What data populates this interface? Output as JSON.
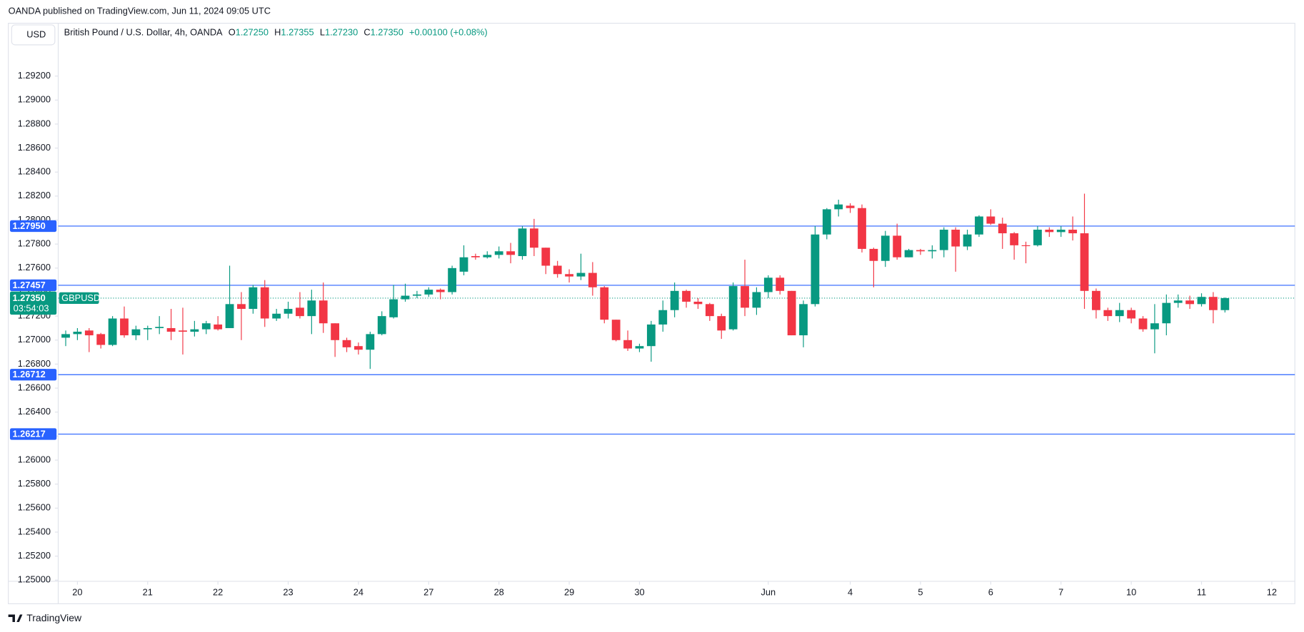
{
  "chart_data": {
    "type": "candlestick",
    "header": "OANDA published on TradingView.com, Jun 11, 2024 09:05 UTC",
    "currency": "USD",
    "legend": {
      "symbol": "British Pound / U.S. Dollar, 4h, OANDA",
      "o_label": "O",
      "o_value": "1.27250",
      "h_label": "H",
      "h_value": "1.27355",
      "l_label": "L",
      "l_value": "1.27230",
      "c_label": "C",
      "c_value": "1.27350",
      "change": "+0.00100 (+0.08%)"
    },
    "footer": "TradingView",
    "up_color": "#089981",
    "down_color": "#f23645",
    "open": [
      1.2702,
      1.2705,
      1.2708,
      1.2705,
      1.2696,
      1.2718,
      1.2704,
      1.2709,
      1.271,
      1.271,
      1.2708,
      1.2707,
      1.2709,
      1.2713,
      1.271,
      1.273,
      1.2726,
      1.2744,
      1.2718,
      1.2722,
      1.2727,
      1.272,
      1.2733,
      1.2714,
      1.27,
      1.2695,
      1.2692,
      1.2705,
      1.2719,
      1.2734,
      1.2737,
      1.2738,
      1.2742,
      1.274,
      1.2757,
      1.277,
      1.2769,
      1.2771,
      1.2774,
      1.277,
      1.2793,
      1.2777,
      1.2762,
      1.2755,
      1.2753,
      1.2756,
      1.2744,
      1.2717,
      1.27,
      1.2693,
      1.2695,
      1.2713,
      1.2725,
      1.2741,
      1.2732,
      1.273,
      1.272,
      1.2709,
      1.2745,
      1.2727,
      1.274,
      1.2752,
      1.2741,
      1.2704,
      1.273,
      1.2788,
      1.2809,
      1.2812,
      1.281,
      1.2776,
      1.2766,
      1.2787,
      1.2769,
      1.2775,
      1.2774,
      1.2775,
      1.2792,
      1.2778,
      1.2788,
      1.2803,
      1.2797,
      1.2789,
      1.2779,
      1.2779,
      1.2792,
      1.279,
      1.2792,
      1.2789,
      1.2741,
      1.2725,
      1.272,
      1.2725,
      1.2718,
      1.2709,
      1.2714,
      1.2731,
      1.2733,
      1.273,
      1.2736,
      1.2725
    ],
    "high": [
      1.2708,
      1.271,
      1.271,
      1.2706,
      1.272,
      1.2728,
      1.2712,
      1.2712,
      1.272,
      1.2726,
      1.2727,
      1.2716,
      1.2716,
      1.272,
      1.2762,
      1.274,
      1.2746,
      1.275,
      1.2726,
      1.2732,
      1.274,
      1.2742,
      1.2748,
      1.2714,
      1.2702,
      1.2698,
      1.2707,
      1.2724,
      1.2746,
      1.2747,
      1.2741,
      1.2744,
      1.2743,
      1.2762,
      1.2779,
      1.2772,
      1.2774,
      1.2778,
      1.2781,
      1.2795,
      1.2801,
      1.2777,
      1.2766,
      1.2759,
      1.2772,
      1.2765,
      1.2745,
      1.2717,
      1.2708,
      1.2697,
      1.2716,
      1.2733,
      1.2748,
      1.2742,
      1.2735,
      1.2731,
      1.2722,
      1.2748,
      1.2767,
      1.2744,
      1.2754,
      1.2754,
      1.2741,
      1.2733,
      1.2795,
      1.281,
      1.2817,
      1.2814,
      1.2813,
      1.2777,
      1.2791,
      1.2797,
      1.2776,
      1.2776,
      1.2779,
      1.2794,
      1.2794,
      1.2792,
      1.2804,
      1.2809,
      1.2802,
      1.279,
      1.2782,
      1.2795,
      1.2794,
      1.2795,
      1.2803,
      1.2822,
      1.2743,
      1.2727,
      1.2731,
      1.2727,
      1.272,
      1.273,
      1.2738,
      1.2738,
      1.2737,
      1.2739,
      1.274,
      1.27355
    ],
    "low": [
      1.2695,
      1.27,
      1.269,
      1.2693,
      1.2695,
      1.2702,
      1.27,
      1.27,
      1.2705,
      1.27,
      1.2688,
      1.2703,
      1.2705,
      1.2708,
      1.271,
      1.27,
      1.2722,
      1.2711,
      1.2716,
      1.2718,
      1.2718,
      1.2705,
      1.2706,
      1.2686,
      1.269,
      1.2688,
      1.2676,
      1.2704,
      1.2718,
      1.2732,
      1.2735,
      1.2736,
      1.2734,
      1.2738,
      1.2754,
      1.2767,
      1.2768,
      1.2768,
      1.2764,
      1.2767,
      1.277,
      1.2755,
      1.2752,
      1.2748,
      1.275,
      1.2737,
      1.2714,
      1.2699,
      1.2691,
      1.269,
      1.2682,
      1.2707,
      1.2719,
      1.2727,
      1.2726,
      1.2716,
      1.2701,
      1.2708,
      1.272,
      1.2721,
      1.2735,
      1.2738,
      1.2704,
      1.2694,
      1.2728,
      1.2784,
      1.2803,
      1.2806,
      1.2773,
      1.2744,
      1.2761,
      1.2767,
      1.2769,
      1.2771,
      1.2768,
      1.2769,
      1.2757,
      1.2775,
      1.2786,
      1.2796,
      1.2776,
      1.2767,
      1.2764,
      1.2778,
      1.2786,
      1.2786,
      1.2783,
      1.2726,
      1.2718,
      1.2716,
      1.2715,
      1.2714,
      1.2707,
      1.2689,
      1.2704,
      1.2727,
      1.2726,
      1.2728,
      1.2714,
      1.2723
    ],
    "close": [
      1.2705,
      1.2707,
      1.2704,
      1.2696,
      1.2718,
      1.2704,
      1.2709,
      1.271,
      1.2711,
      1.2707,
      1.2707,
      1.2709,
      1.2714,
      1.2709,
      1.273,
      1.2726,
      1.2744,
      1.2718,
      1.2722,
      1.2726,
      1.272,
      1.2733,
      1.2714,
      1.27,
      1.2694,
      1.2692,
      1.2705,
      1.272,
      1.2734,
      1.2737,
      1.2738,
      1.2742,
      1.274,
      1.276,
      1.2769,
      1.2769,
      1.2771,
      1.2774,
      1.2771,
      1.2793,
      1.2777,
      1.2762,
      1.2755,
      1.2753,
      1.2756,
      1.2744,
      1.2717,
      1.27,
      1.2693,
      1.2695,
      1.2713,
      1.2725,
      1.2741,
      1.2732,
      1.273,
      1.272,
      1.2708,
      1.2745,
      1.2727,
      1.274,
      1.2752,
      1.2741,
      1.2704,
      1.273,
      1.2788,
      1.2809,
      1.2813,
      1.281,
      1.2776,
      1.2766,
      1.2787,
      1.2769,
      1.2775,
      1.2774,
      1.2775,
      1.2792,
      1.2778,
      1.2788,
      1.2803,
      1.2797,
      1.2789,
      1.2779,
      1.2779,
      1.2792,
      1.279,
      1.2792,
      1.2789,
      1.2741,
      1.2725,
      1.272,
      1.2725,
      1.2718,
      1.2709,
      1.2714,
      1.2731,
      1.2733,
      1.273,
      1.2736,
      1.2725,
      1.2735
    ],
    "ylim": [
      1.2499,
      1.2964
    ],
    "yticks": [
      {
        "value": 1.25,
        "label": "1.25000"
      },
      {
        "value": 1.252,
        "label": "1.25200"
      },
      {
        "value": 1.254,
        "label": "1.25400"
      },
      {
        "value": 1.256,
        "label": "1.25600"
      },
      {
        "value": 1.258,
        "label": "1.25800"
      },
      {
        "value": 1.26,
        "label": "1.26000"
      },
      {
        "value": 1.262,
        "label": "1.26200"
      },
      {
        "value": 1.264,
        "label": "1.26400"
      },
      {
        "value": 1.266,
        "label": "1.26600"
      },
      {
        "value": 1.268,
        "label": "1.26800"
      },
      {
        "value": 1.27,
        "label": "1.27000"
      },
      {
        "value": 1.272,
        "label": "1.27200"
      },
      {
        "value": 1.274,
        "label": "1.27400"
      },
      {
        "value": 1.276,
        "label": "1.27600"
      },
      {
        "value": 1.278,
        "label": "1.27800"
      },
      {
        "value": 1.28,
        "label": "1.28000"
      },
      {
        "value": 1.282,
        "label": "1.28200"
      },
      {
        "value": 1.284,
        "label": "1.28400"
      },
      {
        "value": 1.286,
        "label": "1.28600"
      },
      {
        "value": 1.288,
        "label": "1.28800"
      },
      {
        "value": 1.29,
        "label": "1.29000"
      },
      {
        "value": 1.292,
        "label": "1.29200"
      }
    ],
    "xlim": [
      -0.64,
      104.97
    ],
    "xticks": [
      {
        "value": 1,
        "label": "20"
      },
      {
        "value": 7,
        "label": "21"
      },
      {
        "value": 13,
        "label": "22"
      },
      {
        "value": 19,
        "label": "23"
      },
      {
        "value": 25,
        "label": "24"
      },
      {
        "value": 31,
        "label": "27"
      },
      {
        "value": 37,
        "label": "28"
      },
      {
        "value": 43,
        "label": "29"
      },
      {
        "value": 49,
        "label": "30"
      },
      {
        "value": 60,
        "label": "Jun"
      },
      {
        "value": 67,
        "label": "4"
      },
      {
        "value": 73,
        "label": "5"
      },
      {
        "value": 79,
        "label": "6"
      },
      {
        "value": 85,
        "label": "7"
      },
      {
        "value": 91,
        "label": "10"
      },
      {
        "value": 97,
        "label": "11"
      },
      {
        "value": 103,
        "label": "12"
      }
    ],
    "grid": false,
    "hline_color": "#2962ff",
    "hlines": [
      {
        "value": 1.2795,
        "label": "1.27950"
      },
      {
        "value": 1.27457,
        "label": "1.27457"
      },
      {
        "value": 1.26712,
        "label": "1.26712"
      },
      {
        "value": 1.26217,
        "label": "1.26217"
      }
    ],
    "last_price": {
      "value": 1.2735,
      "label": "1.27350",
      "symbol": "GBPUSD",
      "countdown": "03:54:03"
    }
  }
}
